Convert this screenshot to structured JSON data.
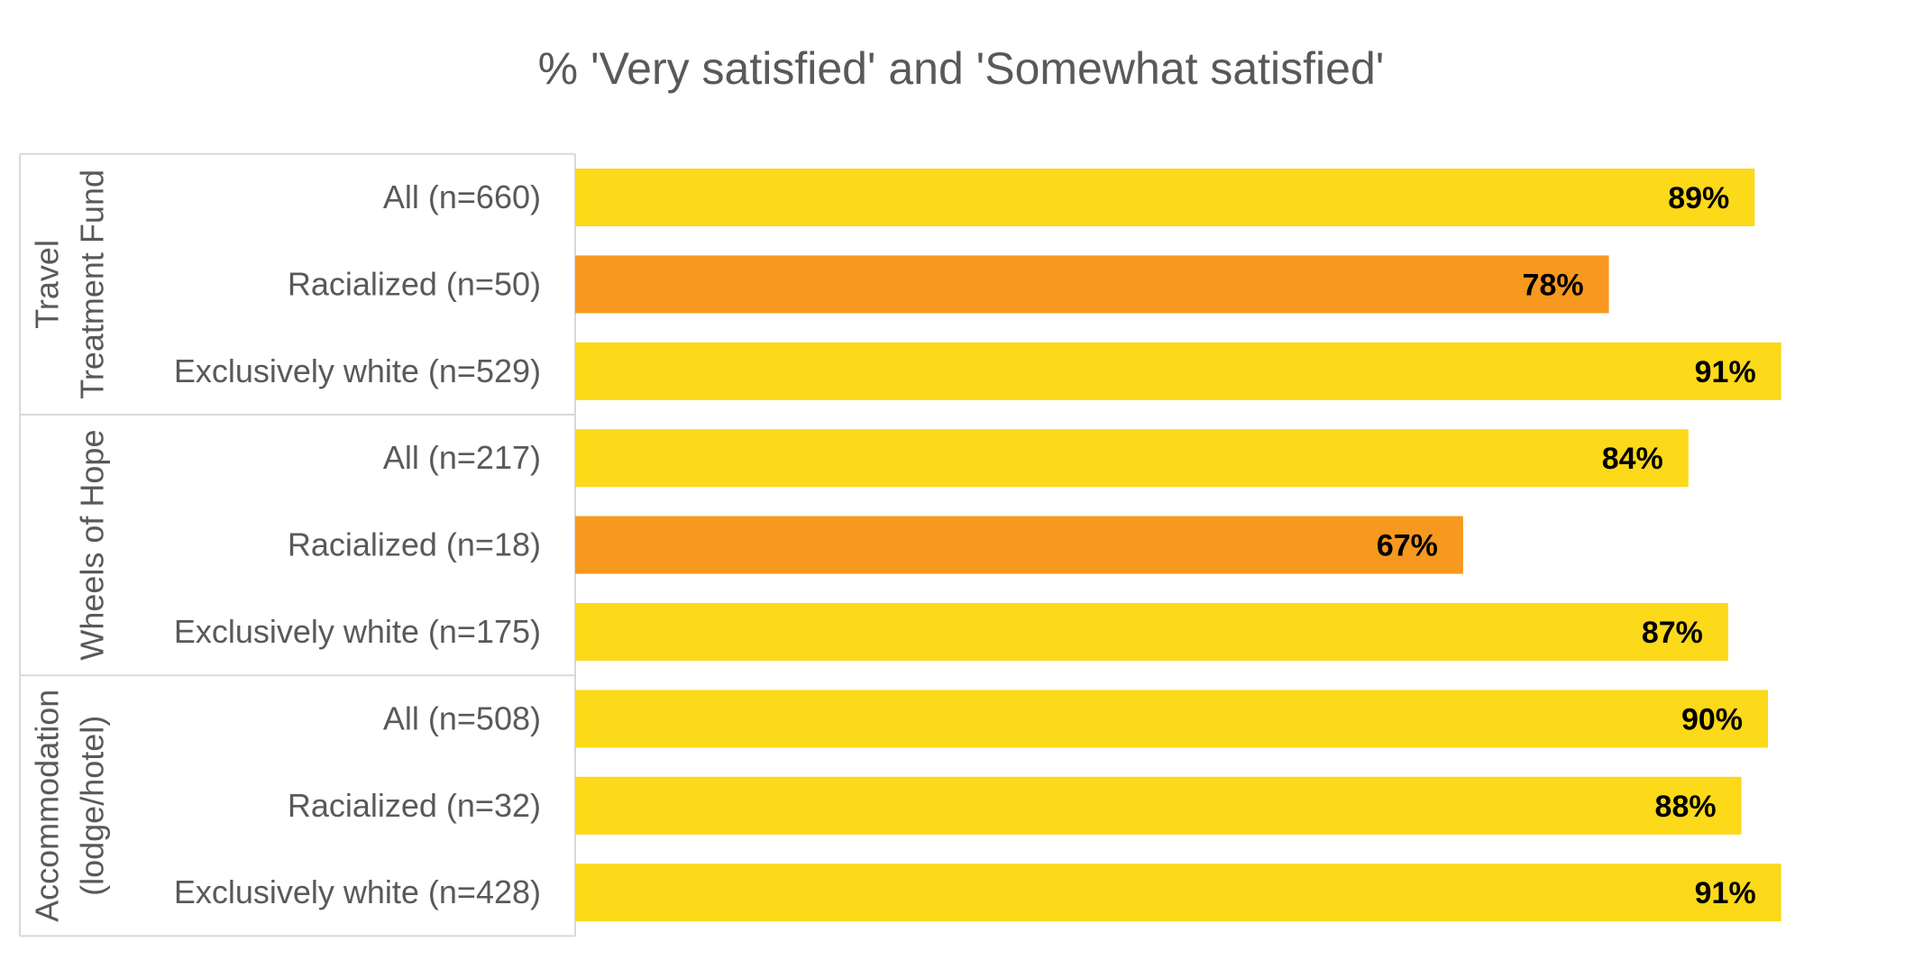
{
  "chart_data": {
    "type": "bar",
    "orientation": "horizontal",
    "title": "% 'Very satisfied' and 'Somewhat satisfied'",
    "xlim": [
      0,
      100
    ],
    "grid": false,
    "legend": "none",
    "value_suffix": "%",
    "groups": [
      {
        "label_lines": [
          "Travel",
          "Treatment Fund"
        ],
        "bars": [
          {
            "category": "All (n=660)",
            "value": 89,
            "label": "89%",
            "color": "#fcd919"
          },
          {
            "category": "Racialized (n=50)",
            "value": 78,
            "label": "78%",
            "color": "#f7981f"
          },
          {
            "category": "Exclusively white (n=529)",
            "value": 91,
            "label": "91%",
            "color": "#fcd919"
          }
        ]
      },
      {
        "label_lines": [
          "Wheels of Hope"
        ],
        "bars": [
          {
            "category": "All (n=217)",
            "value": 84,
            "label": "84%",
            "color": "#fcd919"
          },
          {
            "category": "Racialized (n=18)",
            "value": 67,
            "label": "67%",
            "color": "#f7981f"
          },
          {
            "category": "Exclusively white (n=175)",
            "value": 87,
            "label": "87%",
            "color": "#fcd919"
          }
        ]
      },
      {
        "label_lines": [
          "Accommodation",
          "(lodge/hotel)"
        ],
        "bars": [
          {
            "category": "All (n=508)",
            "value": 90,
            "label": "90%",
            "color": "#fcd919"
          },
          {
            "category": "Racialized (n=32)",
            "value": 88,
            "label": "88%",
            "color": "#fcd919"
          },
          {
            "category": "Exclusively white (n=428)",
            "value": 91,
            "label": "91%",
            "color": "#fcd919"
          }
        ]
      }
    ]
  }
}
